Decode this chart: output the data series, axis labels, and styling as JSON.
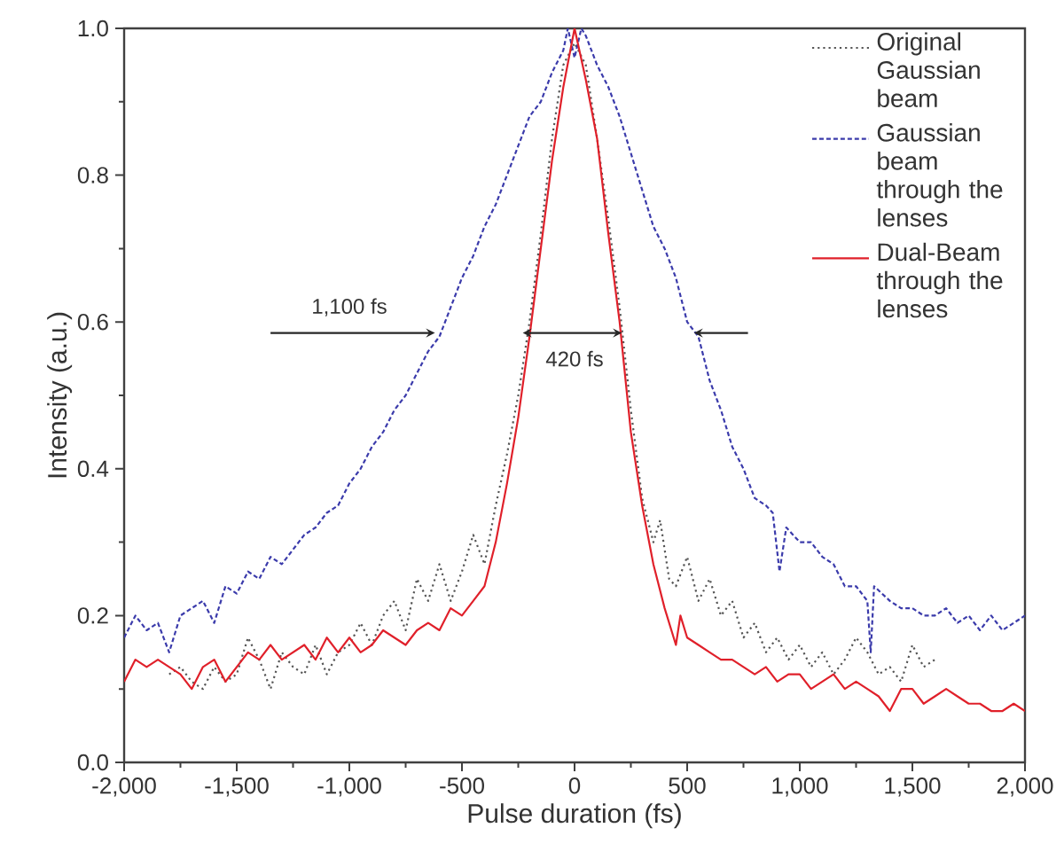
{
  "chart_data": {
    "type": "line",
    "xlabel": "Pulse duration (fs)",
    "ylabel": "Intensity (a.u.)",
    "xlim": [
      -2000,
      2000
    ],
    "ylim": [
      0,
      1
    ],
    "xticks": [
      {
        "value": -2000,
        "label": "-2,000"
      },
      {
        "value": -1500,
        "label": "-1,500"
      },
      {
        "value": -1000,
        "label": "-1,000"
      },
      {
        "value": -500,
        "label": "-500"
      },
      0,
      500,
      {
        "value": 1000,
        "label": "1,000"
      },
      {
        "value": 1500,
        "label": "1,500"
      },
      {
        "value": 2000,
        "label": "2,000"
      }
    ],
    "yticks": [
      {
        "value": 0,
        "label": "0.0"
      },
      0.2,
      0.4,
      0.6,
      0.8,
      {
        "value": 1,
        "label": "1.0"
      }
    ],
    "legend": "top right",
    "grid": false,
    "annotations": [
      "1,100 fs",
      "420 fs"
    ],
    "series": [
      {
        "name": "Original Gaussian beam",
        "color": "#555555",
        "line_style": "dotted",
        "x": [
          -1800,
          -1750,
          -1700,
          -1650,
          -1600,
          -1550,
          -1500,
          -1450,
          -1400,
          -1350,
          -1300,
          -1250,
          -1200,
          -1150,
          -1100,
          -1050,
          -1000,
          -950,
          -900,
          -850,
          -800,
          -750,
          -700,
          -650,
          -600,
          -550,
          -500,
          -450,
          -400,
          -350,
          -300,
          -250,
          -200,
          -150,
          -100,
          -50,
          0,
          50,
          100,
          150,
          200,
          250,
          300,
          350,
          380,
          420,
          450,
          500,
          550,
          600,
          650,
          700,
          750,
          800,
          850,
          900,
          950,
          1000,
          1050,
          1100,
          1150,
          1200,
          1250,
          1300,
          1350,
          1400,
          1450,
          1500,
          1550,
          1600
        ],
        "values": [
          0.12,
          0.13,
          0.11,
          0.1,
          0.13,
          0.11,
          0.12,
          0.17,
          0.14,
          0.1,
          0.15,
          0.13,
          0.12,
          0.16,
          0.12,
          0.15,
          0.16,
          0.19,
          0.16,
          0.2,
          0.22,
          0.18,
          0.25,
          0.22,
          0.27,
          0.22,
          0.26,
          0.31,
          0.27,
          0.35,
          0.42,
          0.5,
          0.6,
          0.72,
          0.85,
          0.95,
          0.98,
          0.95,
          0.85,
          0.74,
          0.62,
          0.48,
          0.36,
          0.3,
          0.33,
          0.25,
          0.24,
          0.28,
          0.22,
          0.25,
          0.2,
          0.22,
          0.17,
          0.19,
          0.15,
          0.17,
          0.14,
          0.16,
          0.13,
          0.15,
          0.12,
          0.14,
          0.17,
          0.15,
          0.12,
          0.13,
          0.11,
          0.16,
          0.13,
          0.14
        ]
      },
      {
        "name": "Gaussian beam through the lenses",
        "color": "#3b3bab",
        "line_style": "dashed",
        "x": [
          -2000,
          -1950,
          -1900,
          -1850,
          -1800,
          -1750,
          -1700,
          -1650,
          -1600,
          -1550,
          -1500,
          -1450,
          -1400,
          -1350,
          -1300,
          -1250,
          -1200,
          -1150,
          -1100,
          -1050,
          -1000,
          -950,
          -900,
          -850,
          -800,
          -750,
          -700,
          -650,
          -600,
          -550,
          -500,
          -450,
          -400,
          -350,
          -300,
          -250,
          -200,
          -150,
          -100,
          -50,
          -30,
          0,
          30,
          50,
          100,
          150,
          200,
          250,
          300,
          350,
          400,
          450,
          500,
          550,
          600,
          650,
          700,
          750,
          800,
          850,
          880,
          910,
          940,
          1000,
          1050,
          1100,
          1150,
          1200,
          1250,
          1300,
          1315,
          1330,
          1400,
          1450,
          1500,
          1550,
          1600,
          1650,
          1700,
          1750,
          1800,
          1850,
          1900,
          1950,
          2000
        ],
        "values": [
          0.17,
          0.2,
          0.18,
          0.19,
          0.15,
          0.2,
          0.21,
          0.22,
          0.19,
          0.24,
          0.23,
          0.26,
          0.25,
          0.28,
          0.27,
          0.29,
          0.31,
          0.32,
          0.34,
          0.35,
          0.38,
          0.4,
          0.43,
          0.45,
          0.48,
          0.5,
          0.53,
          0.56,
          0.58,
          0.62,
          0.66,
          0.69,
          0.73,
          0.76,
          0.8,
          0.84,
          0.88,
          0.9,
          0.94,
          0.97,
          1.0,
          0.96,
          1.0,
          0.99,
          0.95,
          0.92,
          0.88,
          0.83,
          0.78,
          0.73,
          0.7,
          0.66,
          0.6,
          0.58,
          0.52,
          0.48,
          0.43,
          0.4,
          0.36,
          0.35,
          0.34,
          0.26,
          0.32,
          0.3,
          0.3,
          0.28,
          0.27,
          0.24,
          0.24,
          0.22,
          0.15,
          0.24,
          0.22,
          0.21,
          0.21,
          0.2,
          0.2,
          0.21,
          0.19,
          0.2,
          0.18,
          0.2,
          0.18,
          0.19,
          0.2
        ]
      },
      {
        "name": "Dual-Beam through the lenses",
        "color": "#e0202a",
        "line_style": "solid",
        "x": [
          -2000,
          -1950,
          -1900,
          -1850,
          -1800,
          -1750,
          -1700,
          -1650,
          -1600,
          -1550,
          -1500,
          -1450,
          -1400,
          -1350,
          -1300,
          -1250,
          -1200,
          -1150,
          -1100,
          -1050,
          -1000,
          -950,
          -900,
          -850,
          -800,
          -750,
          -700,
          -650,
          -600,
          -550,
          -500,
          -450,
          -400,
          -350,
          -300,
          -250,
          -200,
          -150,
          -100,
          -50,
          0,
          50,
          100,
          150,
          200,
          250,
          300,
          350,
          400,
          450,
          470,
          500,
          550,
          600,
          650,
          700,
          750,
          800,
          850,
          900,
          950,
          1000,
          1050,
          1100,
          1150,
          1200,
          1250,
          1300,
          1350,
          1400,
          1450,
          1500,
          1550,
          1600,
          1650,
          1700,
          1750,
          1800,
          1850,
          1900,
          1950,
          2000
        ],
        "values": [
          0.11,
          0.14,
          0.13,
          0.14,
          0.13,
          0.12,
          0.1,
          0.13,
          0.14,
          0.11,
          0.13,
          0.15,
          0.14,
          0.16,
          0.14,
          0.15,
          0.16,
          0.14,
          0.17,
          0.15,
          0.17,
          0.15,
          0.16,
          0.18,
          0.17,
          0.16,
          0.18,
          0.19,
          0.18,
          0.21,
          0.2,
          0.22,
          0.24,
          0.3,
          0.38,
          0.47,
          0.58,
          0.7,
          0.82,
          0.92,
          1.0,
          0.93,
          0.85,
          0.72,
          0.6,
          0.45,
          0.35,
          0.27,
          0.21,
          0.16,
          0.2,
          0.17,
          0.16,
          0.15,
          0.14,
          0.14,
          0.13,
          0.12,
          0.13,
          0.11,
          0.12,
          0.12,
          0.1,
          0.11,
          0.12,
          0.1,
          0.11,
          0.1,
          0.09,
          0.07,
          0.1,
          0.1,
          0.08,
          0.09,
          0.1,
          0.09,
          0.08,
          0.08,
          0.07,
          0.07,
          0.08,
          0.07
        ]
      }
    ]
  }
}
